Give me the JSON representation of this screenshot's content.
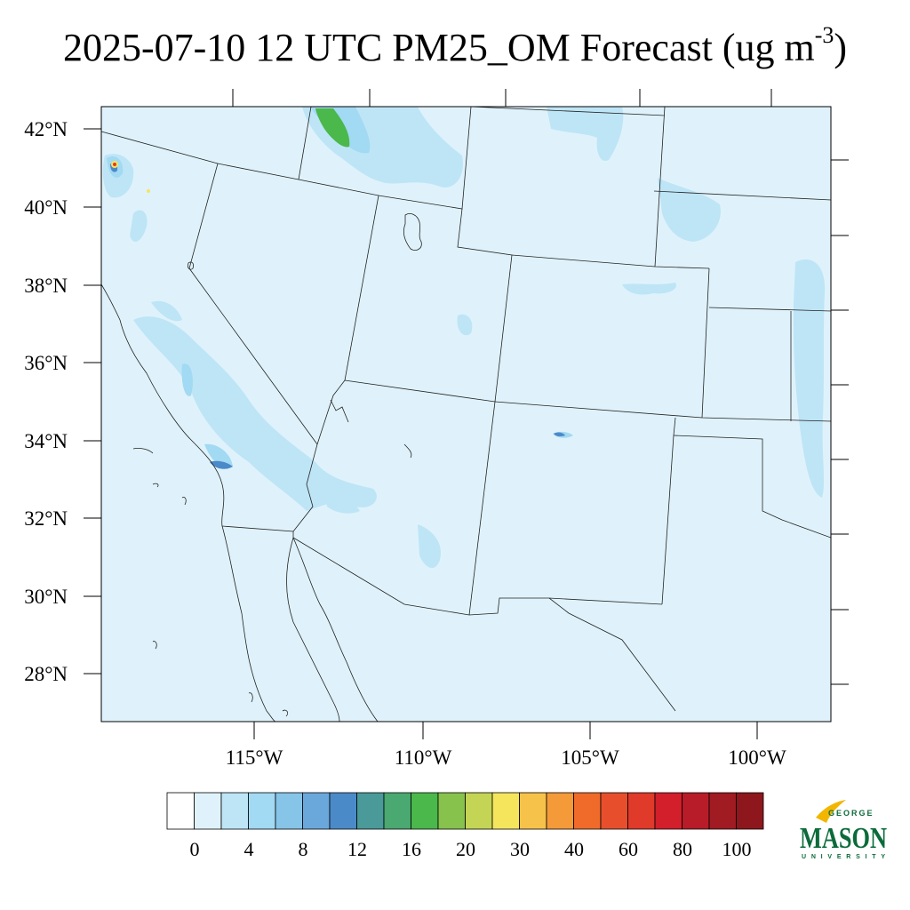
{
  "title": {
    "main": "2025-07-10 12 UTC PM25_OM Forecast (ug m",
    "superscript": "-3",
    "close": ")"
  },
  "map": {
    "background_color": "#dff2fb",
    "lat_labels": [
      "42°N",
      "40°N",
      "38°N",
      "36°N",
      "34°N",
      "32°N",
      "30°N",
      "28°N"
    ],
    "lon_labels": [
      "115°W",
      "110°W",
      "105°W",
      "100°W"
    ]
  },
  "colorbar": {
    "labels": [
      "0",
      "4",
      "8",
      "12",
      "16",
      "20",
      "30",
      "40",
      "60",
      "80",
      "100"
    ],
    "colors": [
      "#ffffff",
      "#dff2fb",
      "#bee5f6",
      "#a2d9f3",
      "#86c4e8",
      "#6aa8dc",
      "#4b8ac9",
      "#4a9a9a",
      "#4aa871",
      "#4ab84a",
      "#86c24c",
      "#c4d454",
      "#f5e55c",
      "#f6c24a",
      "#f49a38",
      "#f06a2a",
      "#e74f2c",
      "#e03a2a",
      "#d21f2b",
      "#b81c28",
      "#a01b22",
      "#8d171c"
    ]
  },
  "logo": {
    "top": "GEORGE",
    "main": "MASON",
    "bottom": "UNIVERSITY"
  }
}
